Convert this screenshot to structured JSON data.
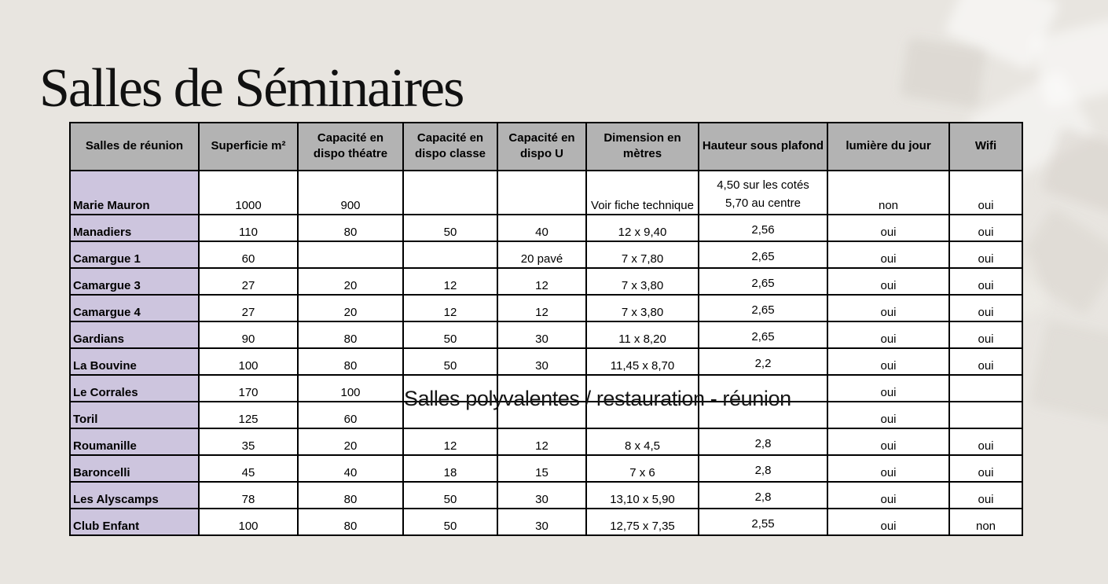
{
  "slide": {
    "title": "Salles de Séminaires"
  },
  "overlay": {
    "text": "Salles polyvalentes / restauration - réunion"
  },
  "colors": {
    "slide_background": "#e8e5e0",
    "header_background": "#b3b3b3",
    "room_name_background": "#cdc5de",
    "table_border": "#000000",
    "cell_background": "#ffffff",
    "text": "#000000"
  },
  "table": {
    "columns": [
      "Salles de réunion",
      "Superficie m²",
      "Capacité en dispo théatre",
      "Capacité en dispo classe",
      "Capacité en dispo U",
      "Dimension en mètres",
      "Hauteur sous plafond",
      "lumière du jour",
      "Wifi"
    ],
    "rows": [
      {
        "name": "Marie Mauron",
        "superficie": "1000",
        "theatre": "900",
        "classe": "",
        "u": "",
        "dimension": "Voir fiche technique",
        "hauteur": "4,50 sur les cotés\n5,70 au centre",
        "lumiere": "non",
        "wifi": "oui"
      },
      {
        "name": "Manadiers",
        "superficie": "110",
        "theatre": "80",
        "classe": "50",
        "u": "40",
        "dimension": "12 x 9,40",
        "hauteur": "2,56",
        "lumiere": "oui",
        "wifi": "oui"
      },
      {
        "name": "Camargue 1",
        "superficie": "60",
        "theatre": "",
        "classe": "",
        "u": "20 pavé",
        "dimension": "7 x 7,80",
        "hauteur": "2,65",
        "lumiere": "oui",
        "wifi": "oui"
      },
      {
        "name": "Camargue 3",
        "superficie": "27",
        "theatre": "20",
        "classe": "12",
        "u": "12",
        "dimension": "7 x 3,80",
        "hauteur": "2,65",
        "lumiere": "oui",
        "wifi": "oui"
      },
      {
        "name": "Camargue 4",
        "superficie": "27",
        "theatre": "20",
        "classe": "12",
        "u": "12",
        "dimension": "7 x 3,80",
        "hauteur": "2,65",
        "lumiere": "oui",
        "wifi": "oui"
      },
      {
        "name": "Gardians",
        "superficie": "90",
        "theatre": "80",
        "classe": "50",
        "u": "30",
        "dimension": "11 x 8,20",
        "hauteur": "2,65",
        "lumiere": "oui",
        "wifi": "oui"
      },
      {
        "name": "La Bouvine",
        "superficie": "100",
        "theatre": "80",
        "classe": "50",
        "u": "30",
        "dimension": "11,45 x 8,70",
        "hauteur": "2,2",
        "lumiere": "oui",
        "wifi": "oui"
      },
      {
        "name": "Le Corrales",
        "superficie": "170",
        "theatre": "100",
        "classe": "",
        "u": "",
        "dimension": "",
        "hauteur": "",
        "lumiere": "oui",
        "wifi": ""
      },
      {
        "name": "Toril",
        "superficie": "125",
        "theatre": "60",
        "classe": "",
        "u": "",
        "dimension": "",
        "hauteur": "",
        "lumiere": "oui",
        "wifi": ""
      },
      {
        "name": "Roumanille",
        "superficie": "35",
        "theatre": "20",
        "classe": "12",
        "u": "12",
        "dimension": "8 x 4,5",
        "hauteur": "2,8",
        "lumiere": "oui",
        "wifi": "oui"
      },
      {
        "name": "Baroncelli",
        "superficie": "45",
        "theatre": "40",
        "classe": "18",
        "u": "15",
        "dimension": "7 x 6",
        "hauteur": "2,8",
        "lumiere": "oui",
        "wifi": "oui"
      },
      {
        "name": "Les Alyscamps",
        "superficie": "78",
        "theatre": "80",
        "classe": "50",
        "u": "30",
        "dimension": "13,10 x 5,90",
        "hauteur": "2,8",
        "lumiere": "oui",
        "wifi": "oui"
      },
      {
        "name": "Club Enfant",
        "superficie": "100",
        "theatre": "80",
        "classe": "50",
        "u": "30",
        "dimension": "12,75 x 7,35",
        "hauteur": "2,55",
        "lumiere": "oui",
        "wifi": "non"
      }
    ]
  }
}
